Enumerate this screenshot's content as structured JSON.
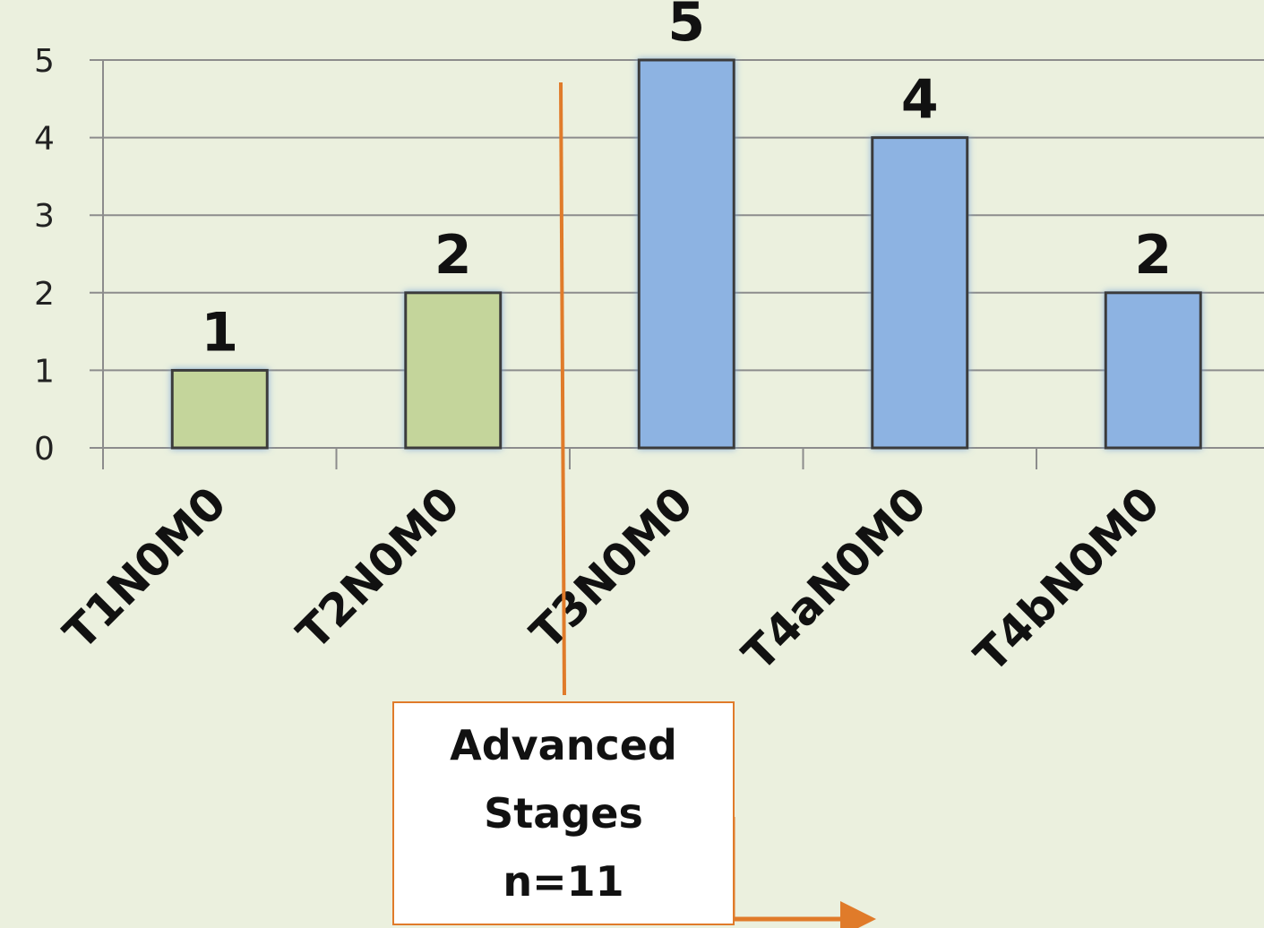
{
  "chart_data": {
    "type": "bar",
    "categories": [
      "T1N0M0",
      "T2N0M0",
      "T3N0M0",
      "T4aN0M0",
      "T4bN0M0"
    ],
    "values": [
      1,
      2,
      5,
      4,
      2
    ],
    "bar_colors": [
      "#c4d59b",
      "#c4d59b",
      "#8db3e2",
      "#8db3e2",
      "#8db3e2"
    ],
    "yticks": [
      "0",
      "1",
      "2",
      "3",
      "4",
      "5"
    ],
    "ylim": [
      0,
      5
    ],
    "grid": true,
    "title": "",
    "xlabel": "",
    "ylabel": ""
  },
  "annotation": {
    "lines": [
      "Advanced",
      "Stages",
      "n=11"
    ],
    "color": "#e07b2a"
  }
}
